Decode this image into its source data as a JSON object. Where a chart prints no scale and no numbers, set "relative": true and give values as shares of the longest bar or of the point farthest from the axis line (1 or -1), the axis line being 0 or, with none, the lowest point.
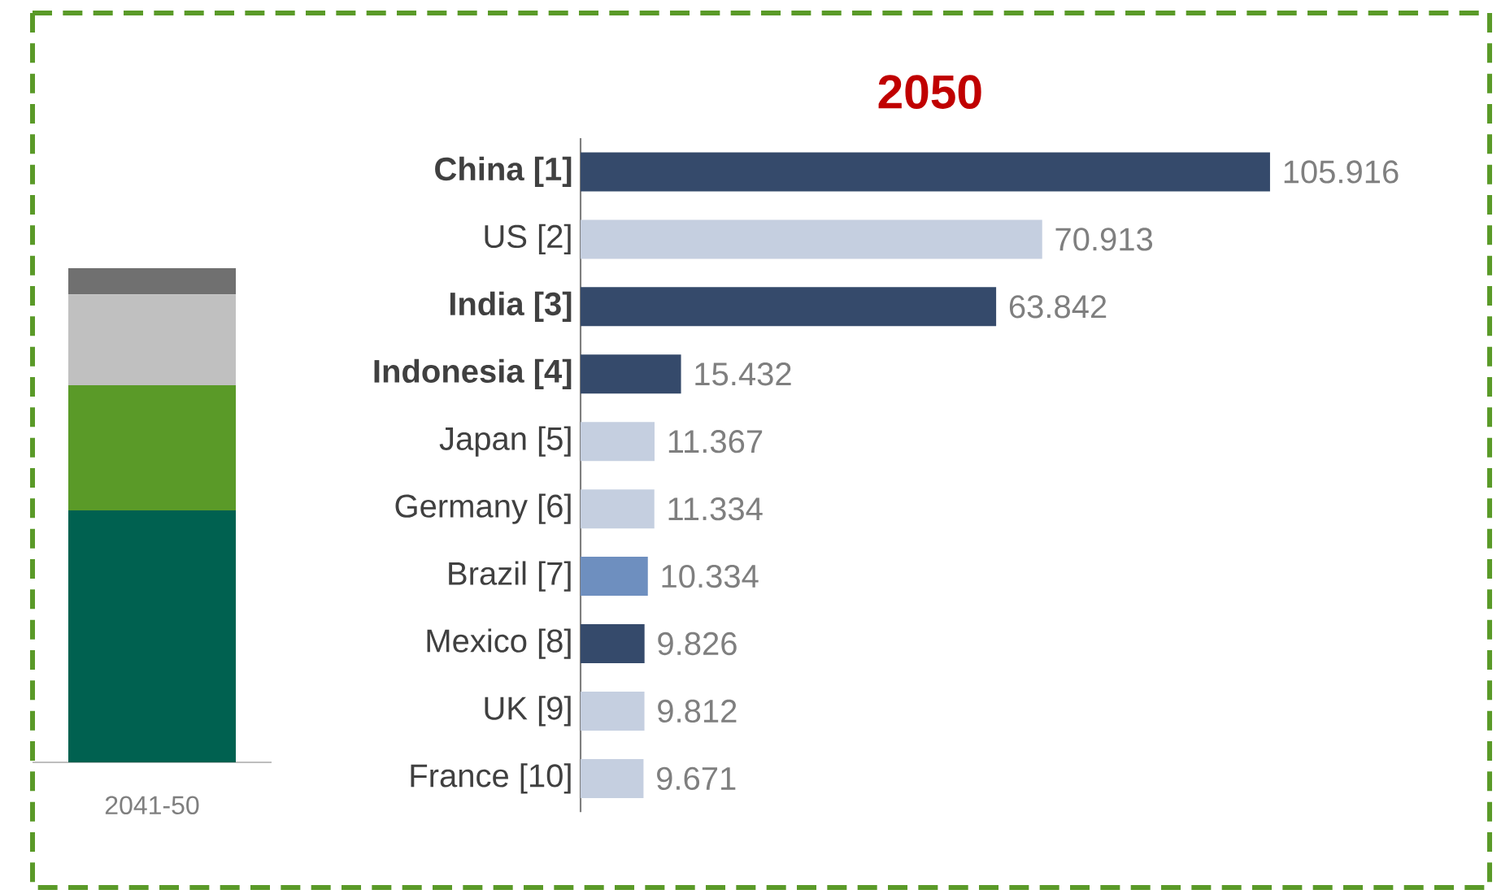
{
  "chart_data": [
    {
      "type": "bar",
      "stacked": true,
      "relative": true,
      "categories": [
        "2041-50"
      ],
      "series": [
        {
          "color": "#006150",
          "values": [
            0.51
          ]
        },
        {
          "color": "#5a9a28",
          "values": [
            0.253
          ]
        },
        {
          "color": "#c0c0c0",
          "values": [
            0.184
          ]
        },
        {
          "color": "#707070",
          "values": [
            0.053
          ]
        }
      ]
    },
    {
      "type": "bar",
      "orientation": "horizontal",
      "title": "2050",
      "data_labels": true,
      "categories": [
        "**China [1]**",
        "US [2]",
        "**India [3]**",
        "**Indonesia [4]**",
        "Japan [5]",
        "Germany [6]",
        "Brazil [7]",
        "Mexico [8]",
        "UK [9]",
        "France [10]"
      ],
      "values": [
        105.916,
        70.913,
        63.842,
        15.432,
        11.367,
        11.334,
        10.334,
        9.826,
        9.812,
        9.671
      ],
      "colors": [
        "#354a6b",
        "#c5cfe0",
        "#354a6b",
        "#354a6b",
        "#c5cfe0",
        "#c5cfe0",
        "#6e8fbf",
        "#354a6b",
        "#c5cfe0",
        "#c5cfe0"
      ]
    }
  ]
}
